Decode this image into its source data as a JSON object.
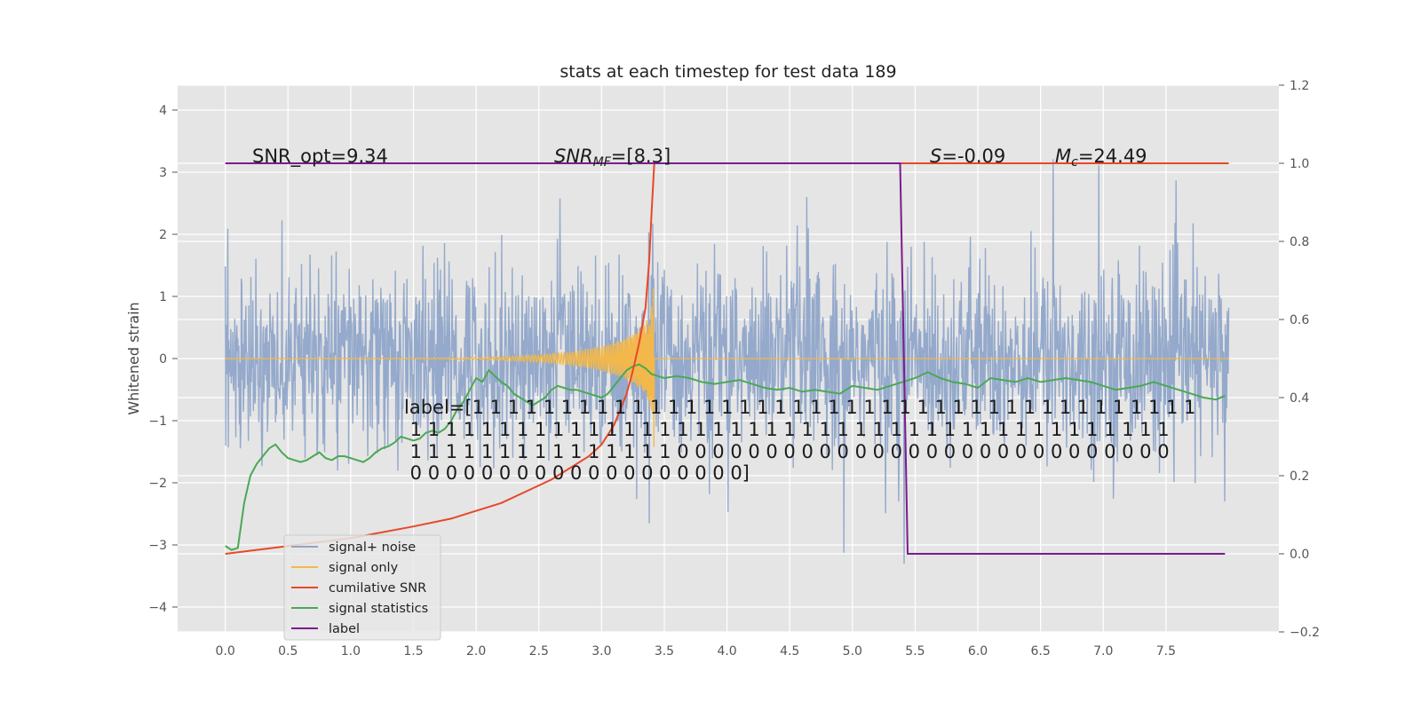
{
  "chart_data": {
    "type": "line",
    "title": "stats at each timestep for test data 189",
    "xlabel": "",
    "ylabel": "Whitened strain",
    "xlim": [
      -0.38,
      8.4
    ],
    "ylim": [
      -4.4,
      4.4
    ],
    "ylim_right": [
      -0.2,
      1.2
    ],
    "xticks": [
      0.0,
      0.5,
      1.0,
      1.5,
      2.0,
      2.5,
      3.0,
      3.5,
      4.0,
      4.5,
      5.0,
      5.5,
      6.0,
      6.5,
      7.0,
      7.5
    ],
    "xtick_labels": [
      "0.0",
      "0.5",
      "1.0",
      "1.5",
      "2.0",
      "2.5",
      "3.0",
      "3.5",
      "4.0",
      "4.5",
      "5.0",
      "5.5",
      "6.0",
      "6.5",
      "7.0",
      "7.5"
    ],
    "yticks": [
      -4,
      -3,
      -2,
      -1,
      0,
      1,
      2,
      3,
      4
    ],
    "ytick_labels": [
      "−4",
      "−3",
      "−2",
      "−1",
      "0",
      "1",
      "2",
      "3",
      "4"
    ],
    "yticks_right": [
      -0.2,
      0.0,
      0.2,
      0.4,
      0.6,
      0.8,
      1.0,
      1.2
    ],
    "ytick_labels_right": [
      "−0.2",
      "0.0",
      "0.2",
      "0.4",
      "0.6",
      "0.8",
      "1.0",
      "1.2"
    ],
    "grid": true,
    "legend_position": "bottom-left",
    "colors": {
      "noise": "#8fa5c9",
      "signal": "#f2b84b",
      "cumsnr": "#e8472a",
      "stats": "#4aa855",
      "label": "#7a1c8c",
      "plot_bg": "#e5e5e5",
      "grid": "#ffffff"
    },
    "annotations": {
      "snr_opt": "SNR_opt=9.34",
      "snr_mf": "SNR_MF=[8.3]",
      "s": "S=-0.09",
      "mc": "M_c=24.49",
      "label_lines": [
        "label=[1 1 1 1 1 1 1 1 1 1 1 1 1 1 1 1 1 1 1 1 1 1 1 1 1 1 1 1 1 1 1 1 1 1 1 1 1 1 1 1 1",
        " 1 1 1 1 1 1 1 1 1 1 1 1 1 1 1 1 1 1 1 1 1 1 1 1 1 1 1 1 1 1 1 1 1 1 1 1 1 1 1 1 1 1 1",
        " 1 1 1 1 1 1 1 1 1 1 1 1 1 1 1 0 0 0 0 0 0 0 0 0 0 0 0 0 0 0 0 0 0 0 0 0 0 0 0 0 0 0 0",
        " 0 0 0 0 0 0 0 0 0 0 0 0 0 0 0 0 0 0 0]"
      ]
    },
    "series": [
      {
        "name": "signal+ noise",
        "axis": "left",
        "description_values": "random noise between about -2 and 2 with spikes to about +/-4",
        "x_range": [
          0.0,
          8.0
        ]
      },
      {
        "name": "signal only",
        "axis": "left",
        "chirp_end": 3.42,
        "peak_amplitude": 2.0,
        "x_range": [
          0.0,
          8.0
        ]
      },
      {
        "name": "cumilative SNR",
        "axis": "right",
        "x": [
          0.0,
          0.5,
          1.0,
          1.5,
          1.8,
          2.0,
          2.2,
          2.4,
          2.6,
          2.8,
          2.9,
          3.0,
          3.1,
          3.15,
          3.2,
          3.25,
          3.3,
          3.35,
          3.38,
          3.4,
          3.42,
          8.0
        ],
        "y": [
          0.0,
          0.02,
          0.04,
          0.07,
          0.09,
          0.11,
          0.13,
          0.16,
          0.19,
          0.23,
          0.25,
          0.28,
          0.33,
          0.37,
          0.41,
          0.47,
          0.54,
          0.63,
          0.75,
          0.88,
          1.0,
          1.0
        ]
      },
      {
        "name": "signal statistics",
        "axis": "right",
        "x": [
          0.0,
          0.05,
          0.1,
          0.15,
          0.2,
          0.25,
          0.3,
          0.35,
          0.4,
          0.45,
          0.5,
          0.55,
          0.6,
          0.65,
          0.7,
          0.75,
          0.8,
          0.85,
          0.9,
          0.95,
          1.0,
          1.05,
          1.1,
          1.15,
          1.2,
          1.25,
          1.3,
          1.35,
          1.4,
          1.45,
          1.5,
          1.55,
          1.6,
          1.65,
          1.7,
          1.75,
          1.8,
          1.85,
          1.9,
          1.95,
          2.0,
          2.05,
          2.1,
          2.15,
          2.2,
          2.25,
          2.3,
          2.35,
          2.4,
          2.45,
          2.5,
          2.55,
          2.6,
          2.65,
          2.7,
          2.75,
          2.8,
          2.85,
          2.9,
          2.95,
          3.0,
          3.05,
          3.1,
          3.15,
          3.2,
          3.25,
          3.3,
          3.35,
          3.4,
          3.45,
          3.5,
          3.6,
          3.7,
          3.8,
          3.9,
          4.0,
          4.1,
          4.2,
          4.3,
          4.4,
          4.5,
          4.6,
          4.7,
          4.8,
          4.9,
          5.0,
          5.1,
          5.2,
          5.3,
          5.4,
          5.5,
          5.6,
          5.7,
          5.8,
          5.9,
          6.0,
          6.1,
          6.2,
          6.3,
          6.4,
          6.5,
          6.6,
          6.7,
          6.8,
          6.9,
          7.0,
          7.1,
          7.2,
          7.3,
          7.4,
          7.5,
          7.6,
          7.7,
          7.8,
          7.9,
          7.97
        ],
        "y": [
          0.02,
          0.01,
          0.015,
          0.13,
          0.2,
          0.23,
          0.25,
          0.27,
          0.28,
          0.26,
          0.245,
          0.24,
          0.235,
          0.24,
          0.25,
          0.26,
          0.245,
          0.24,
          0.25,
          0.25,
          0.245,
          0.24,
          0.235,
          0.245,
          0.26,
          0.27,
          0.275,
          0.285,
          0.3,
          0.295,
          0.29,
          0.295,
          0.31,
          0.315,
          0.31,
          0.32,
          0.34,
          0.37,
          0.39,
          0.42,
          0.45,
          0.44,
          0.47,
          0.455,
          0.44,
          0.43,
          0.41,
          0.4,
          0.39,
          0.38,
          0.39,
          0.4,
          0.42,
          0.43,
          0.425,
          0.42,
          0.42,
          0.415,
          0.41,
          0.405,
          0.4,
          0.41,
          0.43,
          0.45,
          0.47,
          0.48,
          0.485,
          0.475,
          0.46,
          0.455,
          0.45,
          0.455,
          0.45,
          0.44,
          0.435,
          0.44,
          0.445,
          0.435,
          0.425,
          0.42,
          0.425,
          0.415,
          0.42,
          0.415,
          0.41,
          0.43,
          0.425,
          0.42,
          0.43,
          0.44,
          0.45,
          0.465,
          0.45,
          0.44,
          0.435,
          0.425,
          0.45,
          0.445,
          0.44,
          0.45,
          0.44,
          0.445,
          0.45,
          0.445,
          0.44,
          0.43,
          0.42,
          0.425,
          0.43,
          0.44,
          0.43,
          0.42,
          0.41,
          0.4,
          0.395,
          0.405
        ]
      },
      {
        "name": "label",
        "axis": "right",
        "x": [
          0.0,
          5.38,
          5.44,
          7.97
        ],
        "y": [
          1.0,
          1.0,
          0.0,
          0.0
        ]
      }
    ]
  }
}
